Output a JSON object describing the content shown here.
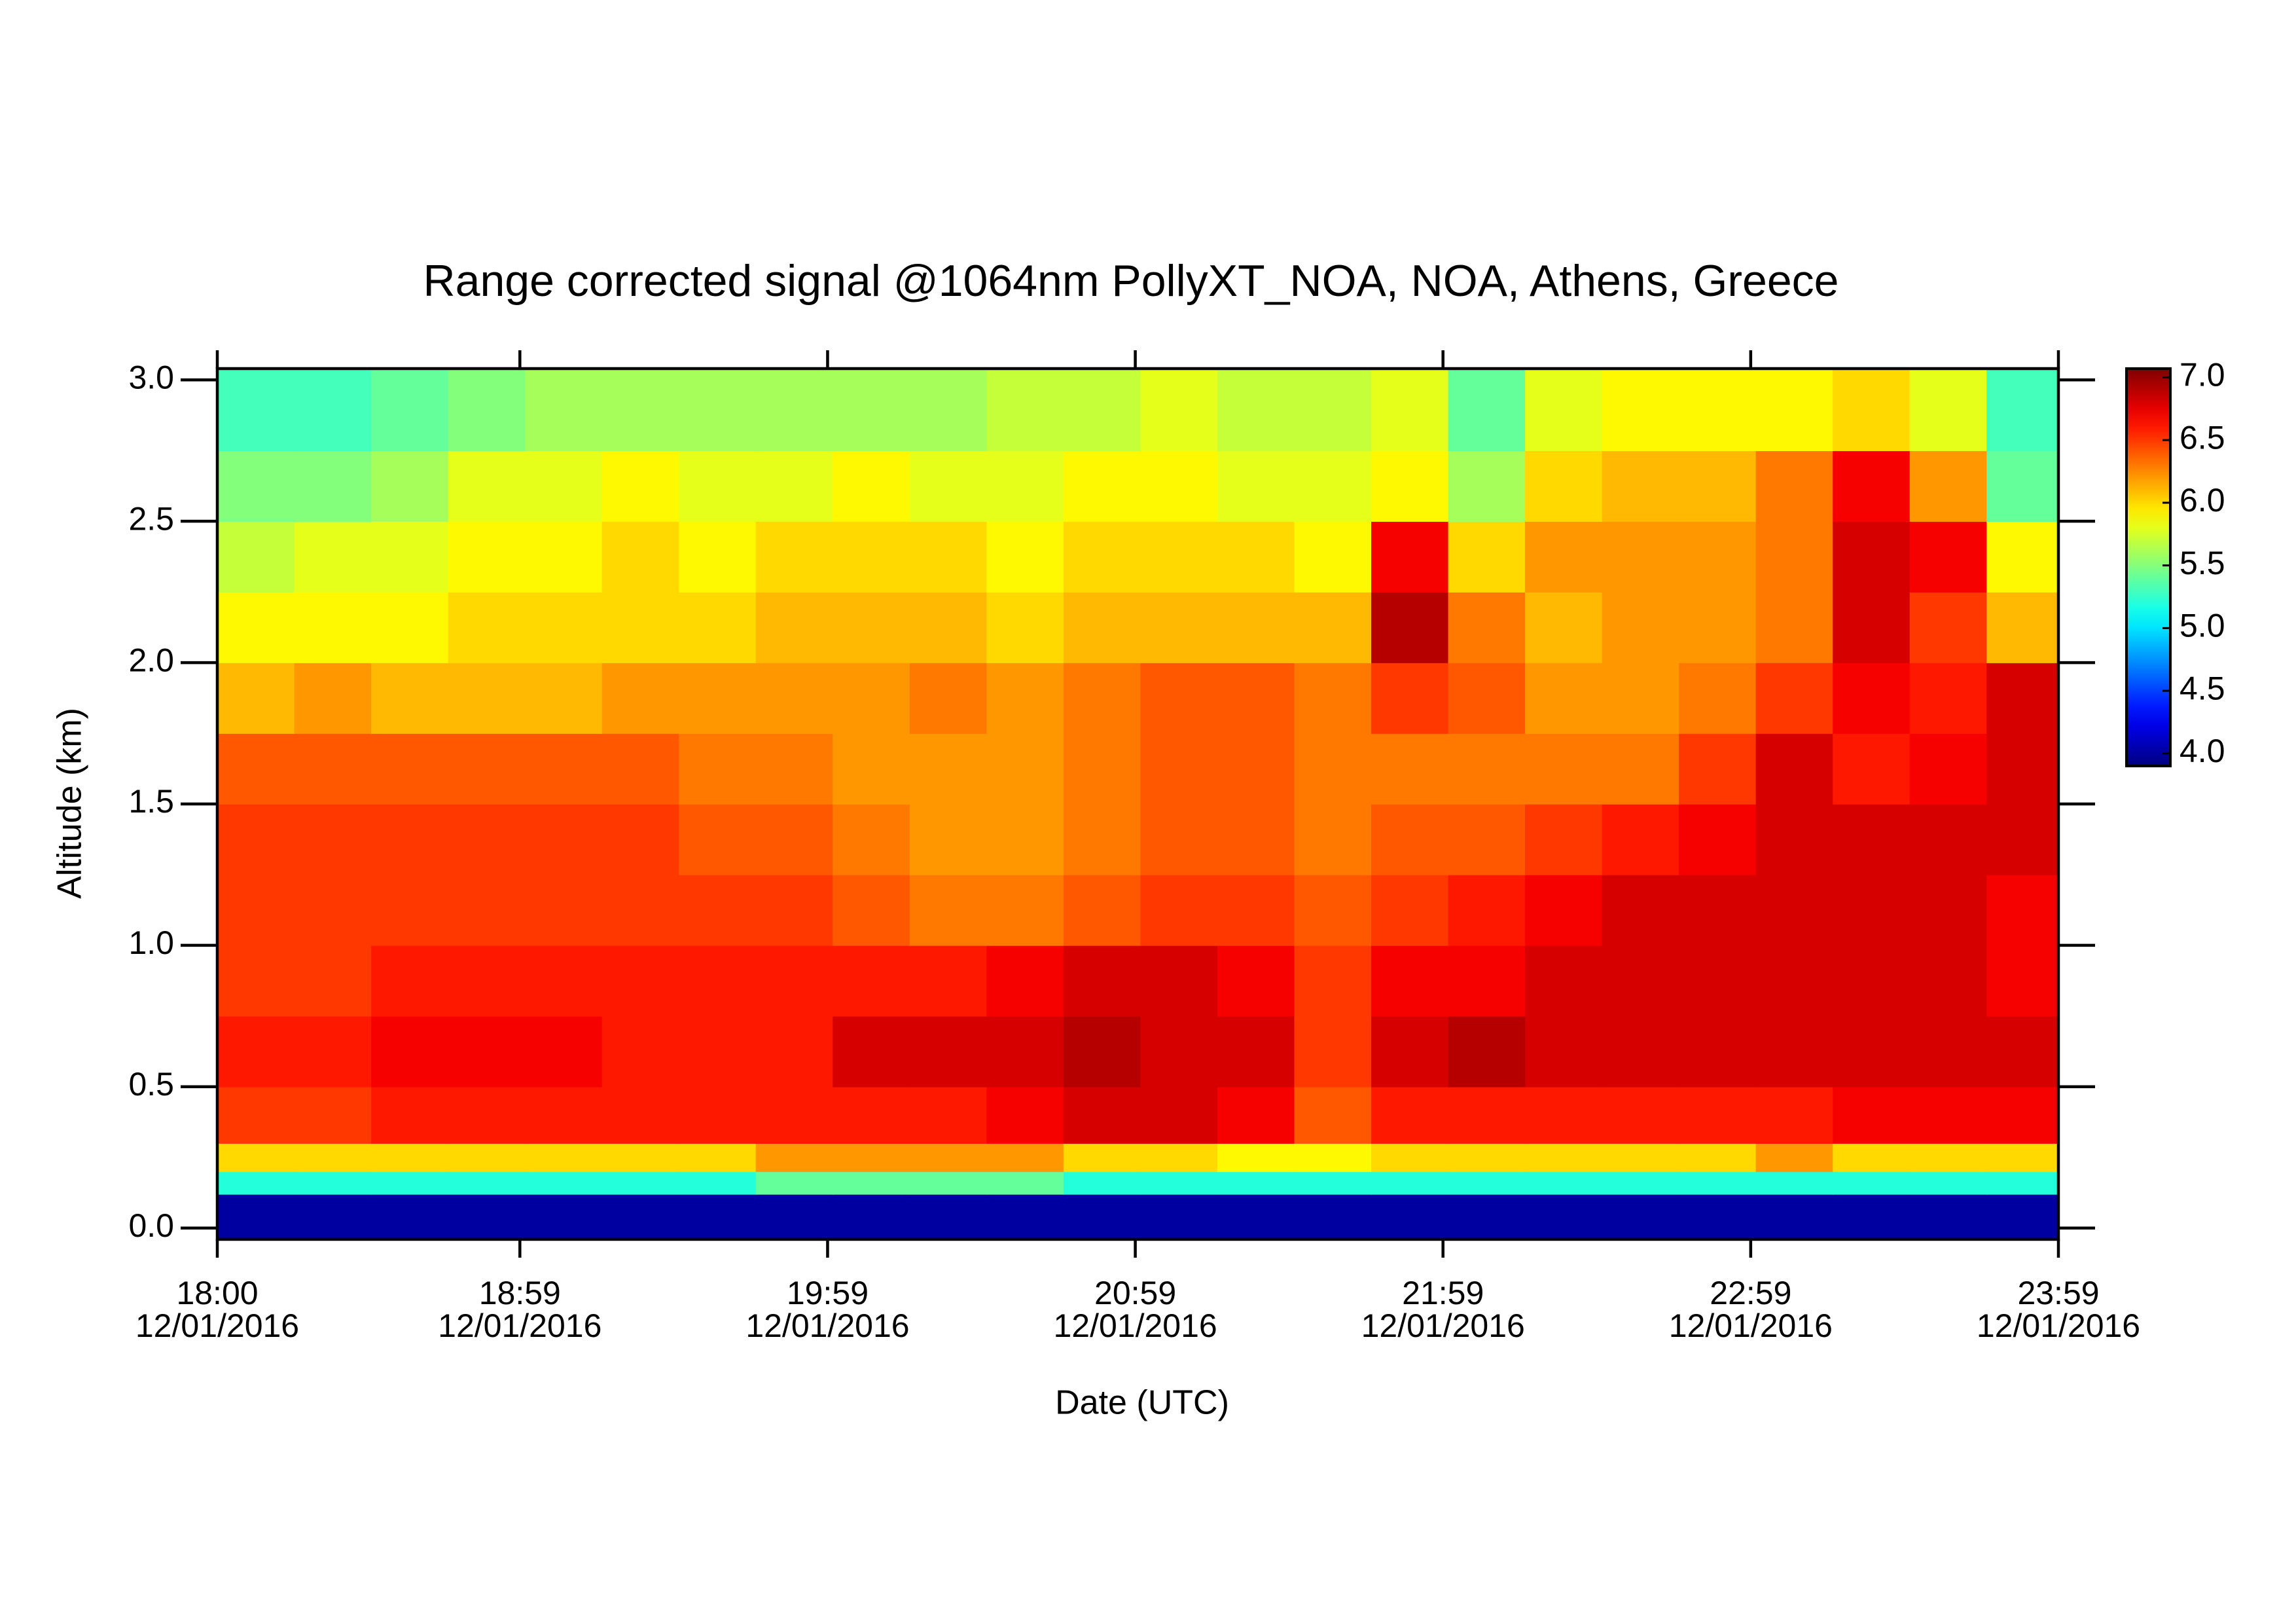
{
  "chart_data": {
    "type": "heatmap",
    "title": "Range corrected signal @1064nm  PollyXT_NOA, NOA, Athens, Greece",
    "x_label": "Date (UTC)",
    "y_label": "Altitude (km)",
    "xlim": [
      "18:00",
      "23:59"
    ],
    "xticks": [
      {
        "time": "18:00",
        "date": "12/01/2016"
      },
      {
        "time": "18:59",
        "date": "12/01/2016"
      },
      {
        "time": "19:59",
        "date": "12/01/2016"
      },
      {
        "time": "20:59",
        "date": "12/01/2016"
      },
      {
        "time": "21:59",
        "date": "12/01/2016"
      },
      {
        "time": "22:59",
        "date": "12/01/2016"
      },
      {
        "time": "23:59",
        "date": "12/01/2016"
      }
    ],
    "ylim": [
      -0.04,
      3.04
    ],
    "yticks": [
      {
        "value": 0,
        "label": "0.0"
      },
      0.5,
      {
        "value": 1,
        "label": "1.0"
      },
      1.5,
      {
        "value": 2,
        "label": "2.0"
      },
      2.5,
      {
        "value": 3,
        "label": "3.0"
      }
    ],
    "colormap": "jet",
    "zlim": [
      3.9,
      7.07
    ],
    "zticks": [
      {
        "value": 4,
        "label": "4.0"
      },
      4.5,
      {
        "value": 5,
        "label": "5.0"
      },
      5.5,
      {
        "value": 6,
        "label": "6.0"
      },
      6.5,
      {
        "value": 7,
        "label": "7.0"
      }
    ],
    "x_edges": [
      "18:00",
      "18:15",
      "18:30",
      "18:45",
      "19:00",
      "19:15",
      "19:30",
      "19:45",
      "20:00",
      "20:15",
      "20:30",
      "20:45",
      "21:00",
      "21:15",
      "21:30",
      "21:45",
      "22:00",
      "22:15",
      "22:30",
      "22:45",
      "23:00",
      "23:15",
      "23:30",
      "23:45",
      "23:59"
    ],
    "y_edges": [
      -0.04,
      0.12,
      0.2,
      0.3,
      0.5,
      0.75,
      1.0,
      1.25,
      1.5,
      1.75,
      2.0,
      2.25,
      2.5,
      2.75,
      3.04
    ],
    "z": [
      [
        4.0,
        4.0,
        4.0,
        4.0,
        4.0,
        4.0,
        4.0,
        4.0,
        4.0,
        4.0,
        4.0,
        4.0,
        4.0,
        4.0,
        4.0,
        4.0,
        4.0,
        4.0,
        4.0,
        4.0,
        4.0,
        4.0,
        4.0,
        4.0
      ],
      [
        5.2,
        5.2,
        5.2,
        5.2,
        5.2,
        5.2,
        5.2,
        5.4,
        5.4,
        5.4,
        5.4,
        5.2,
        5.2,
        5.2,
        5.2,
        5.2,
        5.2,
        5.2,
        5.2,
        5.2,
        5.2,
        5.2,
        5.2,
        5.2
      ],
      [
        6.0,
        6.0,
        6.0,
        6.0,
        6.0,
        6.0,
        6.0,
        6.2,
        6.2,
        6.2,
        6.2,
        6.0,
        6.0,
        5.9,
        5.9,
        6.0,
        6.0,
        6.0,
        6.0,
        6.0,
        6.2,
        6.0,
        6.0,
        6.0
      ],
      [
        6.5,
        6.5,
        6.6,
        6.6,
        6.6,
        6.6,
        6.6,
        6.6,
        6.6,
        6.6,
        6.7,
        6.8,
        6.8,
        6.7,
        6.4,
        6.6,
        6.6,
        6.6,
        6.6,
        6.6,
        6.6,
        6.7,
        6.7,
        6.7
      ],
      [
        6.6,
        6.6,
        6.7,
        6.7,
        6.7,
        6.6,
        6.6,
        6.6,
        6.8,
        6.8,
        6.8,
        6.9,
        6.8,
        6.8,
        6.5,
        6.8,
        6.9,
        6.8,
        6.8,
        6.8,
        6.8,
        6.8,
        6.8,
        6.8
      ],
      [
        6.5,
        6.5,
        6.6,
        6.6,
        6.6,
        6.6,
        6.6,
        6.6,
        6.6,
        6.6,
        6.7,
        6.8,
        6.8,
        6.7,
        6.5,
        6.7,
        6.7,
        6.8,
        6.8,
        6.8,
        6.8,
        6.8,
        6.8,
        6.7
      ],
      [
        6.5,
        6.5,
        6.5,
        6.5,
        6.5,
        6.5,
        6.5,
        6.5,
        6.4,
        6.3,
        6.3,
        6.4,
        6.5,
        6.5,
        6.4,
        6.5,
        6.6,
        6.7,
        6.8,
        6.8,
        6.8,
        6.8,
        6.8,
        6.7
      ],
      [
        6.5,
        6.5,
        6.5,
        6.5,
        6.5,
        6.5,
        6.4,
        6.4,
        6.3,
        6.2,
        6.2,
        6.3,
        6.4,
        6.4,
        6.3,
        6.4,
        6.4,
        6.5,
        6.6,
        6.7,
        6.8,
        6.8,
        6.8,
        6.8
      ],
      [
        6.4,
        6.4,
        6.4,
        6.4,
        6.4,
        6.4,
        6.3,
        6.3,
        6.2,
        6.2,
        6.2,
        6.3,
        6.4,
        6.4,
        6.3,
        6.3,
        6.3,
        6.3,
        6.3,
        6.5,
        6.8,
        6.6,
        6.7,
        6.8
      ],
      [
        6.1,
        6.2,
        6.1,
        6.1,
        6.1,
        6.2,
        6.2,
        6.2,
        6.2,
        6.3,
        6.2,
        6.3,
        6.4,
        6.4,
        6.3,
        6.5,
        6.4,
        6.2,
        6.2,
        6.3,
        6.5,
        6.7,
        6.6,
        6.8
      ],
      [
        5.9,
        5.9,
        5.9,
        6.0,
        6.0,
        6.0,
        6.0,
        6.1,
        6.1,
        6.1,
        6.0,
        6.1,
        6.1,
        6.1,
        6.1,
        6.9,
        6.3,
        6.1,
        6.2,
        6.2,
        6.3,
        6.8,
        6.5,
        6.1
      ],
      [
        5.7,
        5.8,
        5.8,
        5.9,
        5.9,
        6.0,
        5.9,
        6.0,
        6.0,
        6.0,
        5.9,
        6.0,
        6.0,
        6.0,
        5.9,
        6.7,
        6.0,
        6.2,
        6.2,
        6.2,
        6.3,
        6.8,
        6.7,
        5.9
      ],
      [
        5.5,
        5.5,
        5.6,
        5.8,
        5.8,
        5.9,
        5.8,
        5.8,
        5.9,
        5.8,
        5.8,
        5.9,
        5.9,
        5.8,
        5.8,
        5.9,
        5.6,
        6.0,
        6.1,
        6.1,
        6.3,
        6.7,
        6.2,
        5.4
      ],
      [
        5.3,
        5.3,
        5.4,
        5.5,
        5.6,
        5.6,
        5.6,
        5.6,
        5.6,
        5.6,
        5.7,
        5.7,
        5.8,
        5.7,
        5.7,
        5.8,
        5.4,
        5.8,
        5.9,
        5.9,
        5.9,
        6.0,
        5.8,
        5.3
      ]
    ]
  }
}
